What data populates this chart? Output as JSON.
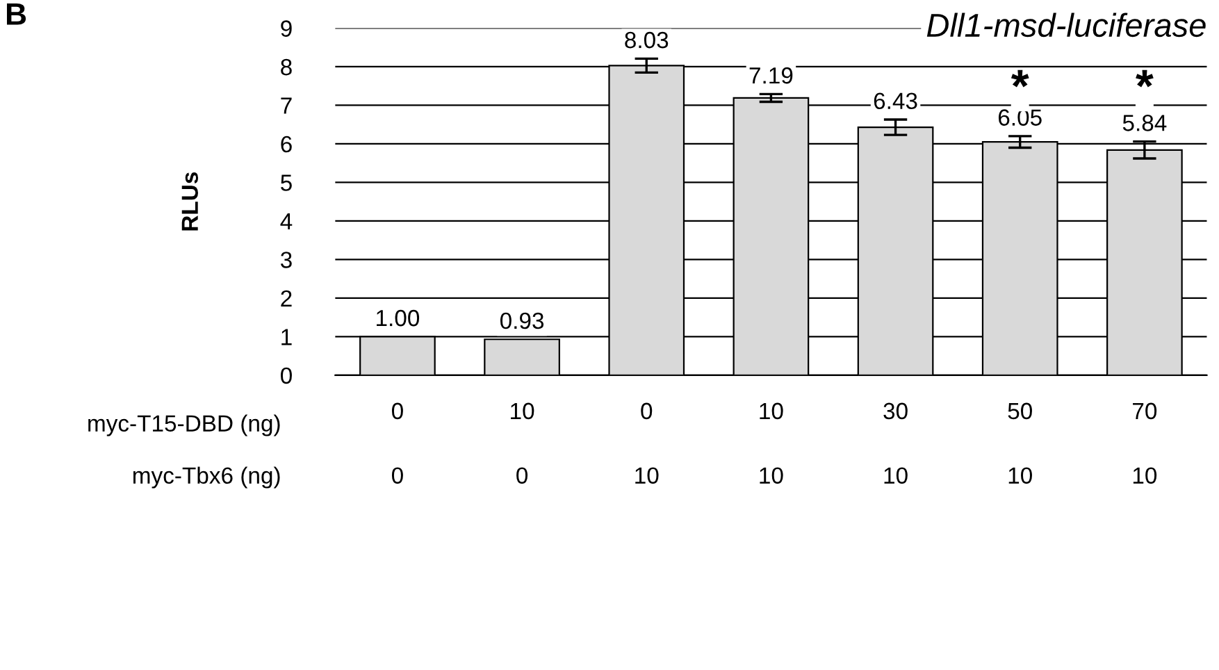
{
  "chart_data": {
    "type": "bar",
    "title": "Dll1-msd-luciferase",
    "ylabel": "RLUs",
    "categories": [
      "0",
      "10",
      "0",
      "10",
      "30",
      "50",
      "70"
    ],
    "values": [
      1.0,
      0.93,
      8.03,
      7.19,
      6.43,
      6.05,
      5.84
    ],
    "errors": [
      null,
      null,
      0.18,
      0.1,
      0.2,
      0.15,
      0.22
    ],
    "color": "#d9d9d9",
    "value_labels": [
      "1.00",
      "0.93",
      "8.03",
      "7.19",
      "6.43",
      "6.05",
      "5.84"
    ],
    "ylim": [
      0,
      9
    ],
    "yticks": [
      0,
      1,
      2,
      3,
      4,
      5,
      6,
      7,
      8,
      9
    ],
    "grid": "y",
    "annotations": [
      "B",
      "myc-T15-DBD (ng)",
      "myc-Tbx6 (ng)",
      "0",
      "0",
      "10",
      "10",
      "10",
      "10",
      "10",
      {
        "text": "*",
        "x": "50",
        "y": 7.4
      },
      {
        "text": "*",
        "x": "70",
        "y": 7.4
      }
    ]
  }
}
